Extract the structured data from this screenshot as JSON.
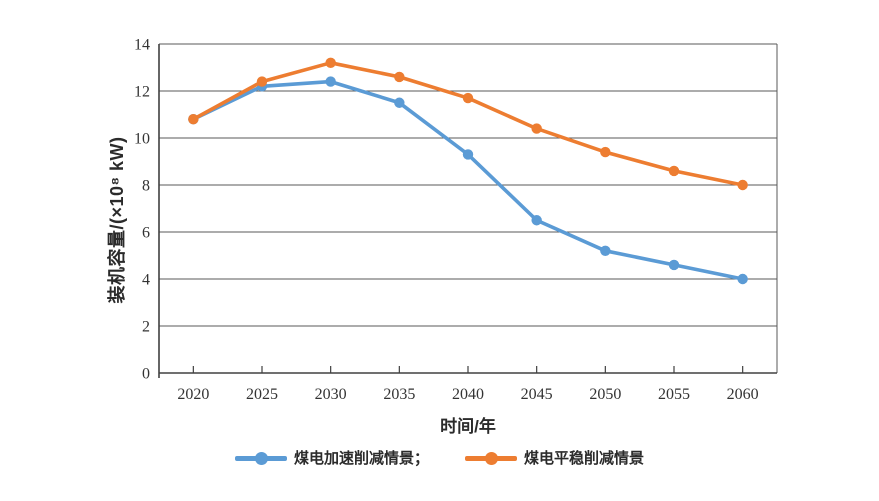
{
  "chart_data": {
    "type": "line",
    "title": "",
    "xlabel": "时间/年",
    "ylabel": "装机容量/(×10⁸ kW)",
    "categories": [
      "2020",
      "2025",
      "2030",
      "2035",
      "2040",
      "2045",
      "2050",
      "2055",
      "2060"
    ],
    "series": [
      {
        "name": "煤电加速削减情景；",
        "color": "#5B9BD5",
        "values": [
          10.8,
          12.2,
          12.4,
          11.5,
          9.3,
          6.5,
          5.2,
          4.6,
          4.0
        ]
      },
      {
        "name": "煤电平稳削减情景",
        "color": "#ED7D31",
        "values": [
          10.8,
          12.4,
          13.2,
          12.6,
          11.7,
          10.4,
          9.4,
          8.6,
          8.0
        ]
      }
    ],
    "ylim": [
      0,
      14
    ],
    "y_ticks": [
      0,
      2,
      4,
      6,
      8,
      10,
      12,
      14
    ],
    "grid": true,
    "legend_position": "bottom"
  },
  "colors": {
    "grid": "#595959",
    "axis": "#404040",
    "tick_text": "#333333",
    "background": "#ffffff"
  }
}
